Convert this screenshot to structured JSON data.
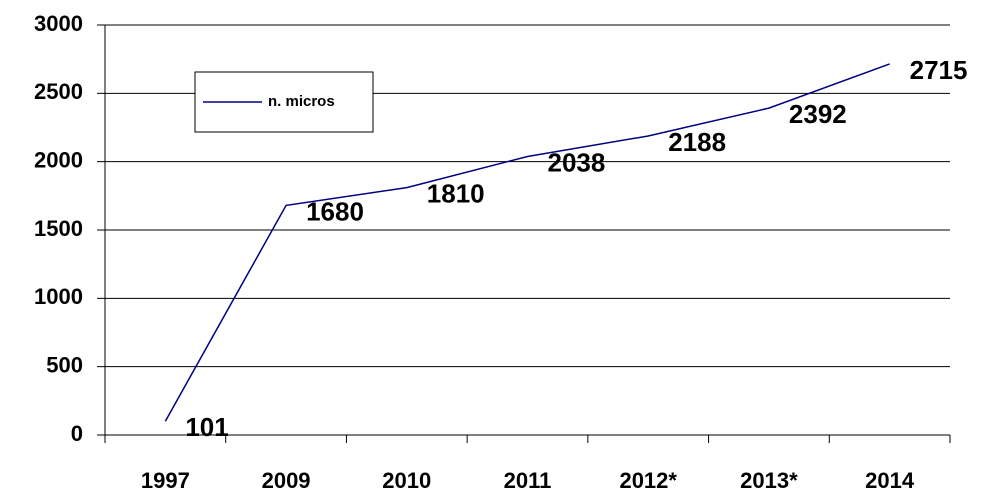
{
  "chart_data": {
    "type": "line",
    "categories": [
      "1997",
      "2009",
      "2010",
      "2011",
      "2012*",
      "2013*",
      "2014"
    ],
    "series": [
      {
        "name": "n. micros",
        "color": "#000080",
        "values": [
          101,
          1680,
          1810,
          2038,
          2188,
          2392,
          2715
        ]
      }
    ],
    "ylim": [
      0,
      3000
    ],
    "yticks": [
      0,
      500,
      1000,
      1500,
      2000,
      2500,
      3000
    ],
    "grid": true,
    "legend": "upper left",
    "data_labels": true
  }
}
